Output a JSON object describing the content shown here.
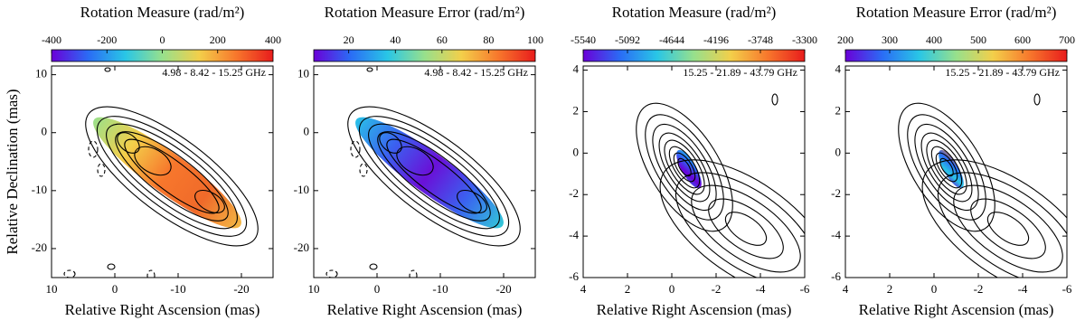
{
  "chart_data": [
    {
      "type": "image",
      "title": "Rotation Measure (rad/m²)",
      "annotation": "4.98 - 8.42 - 15.25 GHz",
      "xlabel": "Relative Right Ascension (mas)",
      "ylabel": "Relative Declination (mas)",
      "xlim": [
        10,
        -25
      ],
      "ylim": [
        -25,
        11.5
      ],
      "xticks": [
        10,
        0,
        -10,
        -20
      ],
      "yticks": [
        -20,
        -10,
        0,
        10
      ],
      "clim": [
        -400,
        400
      ],
      "cticks": [
        -400,
        -200,
        0,
        200,
        400
      ],
      "colormap": [
        "#6a00d8",
        "#2a6cf5",
        "#29c6e6",
        "#97e08c",
        "#f3cf4a",
        "#f7772c",
        "#e81c1c"
      ]
    },
    {
      "type": "image",
      "title": "Rotation Measure Error (rad/m²)",
      "annotation": "4.98 - 8.42 - 15.25 GHz",
      "xlabel": "Relative Right Ascension (mas)",
      "xlim": [
        10,
        -25
      ],
      "ylim": [
        -25,
        11.5
      ],
      "xticks": [
        10,
        0,
        -10,
        -20
      ],
      "yticks": [
        -20,
        -10,
        0,
        10
      ],
      "clim": [
        5,
        100
      ],
      "cticks": [
        20,
        40,
        60,
        80,
        100
      ],
      "colormap": [
        "#6a00d8",
        "#2a6cf5",
        "#29c6e6",
        "#97e08c",
        "#f3cf4a",
        "#f7772c",
        "#e81c1c"
      ]
    },
    {
      "type": "image",
      "title": "Rotation Measure (rad/m²)",
      "annotation": "15.25 - 21.89 - 43.79 GHz",
      "xlabel": "Relative Right Ascension (mas)",
      "xlim": [
        4,
        -6
      ],
      "ylim": [
        -6,
        4.2
      ],
      "xticks": [
        4,
        2,
        0,
        -2,
        -4,
        -6
      ],
      "yticks": [
        -6,
        -4,
        -2,
        0,
        2,
        4
      ],
      "clim": [
        -5540,
        -3300
      ],
      "cticks": [
        -5540,
        -5092,
        -4644,
        -4196,
        -3748,
        -3300
      ],
      "colormap": [
        "#6a00d8",
        "#2a6cf5",
        "#29c6e6",
        "#97e08c",
        "#f3cf4a",
        "#f7772c",
        "#e81c1c"
      ]
    },
    {
      "type": "image",
      "title": "Rotation Measure Error (rad/m²)",
      "annotation": "15.25 - 21.89 - 43.79 GHz",
      "xlabel": "Relative Right Ascension (mas)",
      "xlim": [
        4,
        -6
      ],
      "ylim": [
        -6,
        4.2
      ],
      "xticks": [
        4,
        2,
        0,
        -2,
        -4,
        -6
      ],
      "yticks": [
        -6,
        -4,
        -2,
        0,
        2,
        4
      ],
      "clim": [
        200,
        700
      ],
      "cticks": [
        200,
        300,
        400,
        500,
        600,
        700
      ],
      "colormap": [
        "#6a00d8",
        "#2a6cf5",
        "#29c6e6",
        "#97e08c",
        "#f3cf4a",
        "#f7772c",
        "#e81c1c"
      ]
    }
  ]
}
